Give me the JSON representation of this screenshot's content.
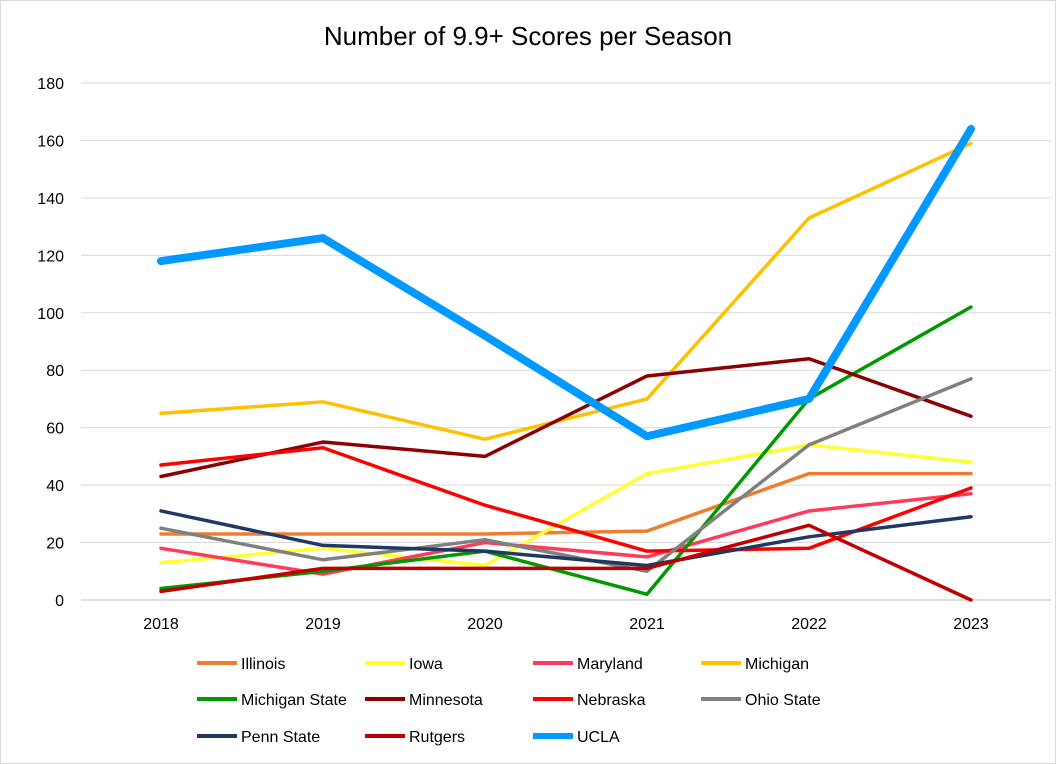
{
  "chart_data": {
    "type": "line",
    "title": "Number of 9.9+ Scores per Season",
    "xlabel": "",
    "ylabel": "",
    "categories": [
      "2018",
      "2019",
      "2020",
      "2021",
      "2022",
      "2023"
    ],
    "ylim": [
      0,
      180
    ],
    "yticks": [
      "0",
      "20",
      "40",
      "60",
      "80",
      "100",
      "120",
      "140",
      "160",
      "180"
    ],
    "grid": true,
    "legend_position": "bottom",
    "series": [
      {
        "name": "Illinois",
        "color": "#ED7D31",
        "values": [
          23,
          23,
          23,
          24,
          44,
          44
        ]
      },
      {
        "name": "Iowa",
        "color": "#FFFF33",
        "values": [
          13,
          18,
          12,
          44,
          54,
          48
        ]
      },
      {
        "name": "Maryland",
        "color": "#FF3B5C",
        "values": [
          18,
          9,
          20,
          15,
          31,
          37
        ]
      },
      {
        "name": "Michigan",
        "color": "#FFC000",
        "values": [
          65,
          69,
          56,
          70,
          133,
          159
        ]
      },
      {
        "name": "Michigan State",
        "color": "#009900",
        "values": [
          4,
          10,
          17,
          2,
          70,
          102
        ]
      },
      {
        "name": "Minnesota",
        "color": "#8B0000",
        "values": [
          43,
          55,
          50,
          78,
          84,
          64
        ]
      },
      {
        "name": "Nebraska",
        "color": "#FF0000",
        "values": [
          47,
          53,
          33,
          17,
          18,
          39
        ]
      },
      {
        "name": "Ohio State",
        "color": "#808080",
        "values": [
          25,
          14,
          21,
          10,
          54,
          77
        ]
      },
      {
        "name": "Penn State",
        "color": "#203864",
        "values": [
          31,
          19,
          17,
          12,
          22,
          29
        ]
      },
      {
        "name": "Rutgers",
        "color": "#C00000",
        "values": [
          3,
          11,
          11,
          11,
          26,
          0
        ]
      },
      {
        "name": "UCLA",
        "color": "#0099FF",
        "values": [
          118,
          126,
          92,
          57,
          70,
          164
        ]
      }
    ]
  }
}
